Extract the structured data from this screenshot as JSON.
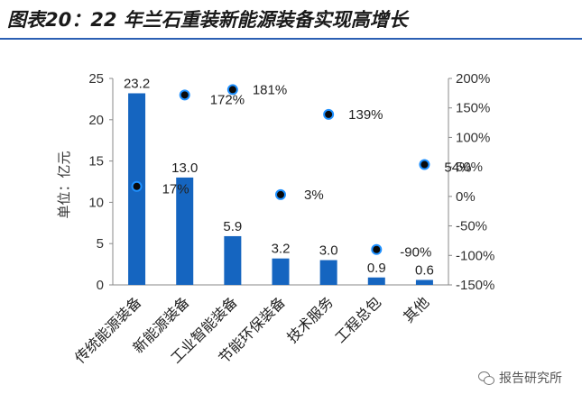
{
  "title": "图表20：22 年兰石重装新能源装备实现高增长",
  "watermark": {
    "text": "报告研究所",
    "icon": "wechat-icon"
  },
  "colors": {
    "bar": "#1565c0",
    "point": "#0a0a0a",
    "point_ring": "#1e90ff",
    "title_rule": "#2b5fb3"
  },
  "chart_data": {
    "type": "bar",
    "categories": [
      "传统能源装备",
      "新能源装备",
      "工业智能装备",
      "节能环保装备",
      "技术服务",
      "工程总包",
      "其他"
    ],
    "series": [
      {
        "axis": "left",
        "mark": "bar",
        "values": [
          23.2,
          13.0,
          5.9,
          3.2,
          3.0,
          0.9,
          0.6
        ],
        "value_labels": [
          "23.2",
          "13.0",
          "5.9",
          "3.2",
          "3.0",
          "0.9",
          "0.6"
        ]
      },
      {
        "axis": "right",
        "mark": "scatter",
        "values": [
          17,
          172,
          181,
          3,
          139,
          -90,
          54
        ],
        "value_labels": [
          "17%",
          "172%",
          "181%",
          "3%",
          "139%",
          "-90%",
          "54%"
        ]
      }
    ],
    "y_left": {
      "label": "单位：亿元",
      "min": 0,
      "max": 25,
      "ticks": [
        0,
        5,
        10,
        15,
        20,
        25
      ],
      "tick_labels": [
        "0",
        "5",
        "10",
        "15",
        "20",
        "25"
      ]
    },
    "y_right": {
      "label": "",
      "min": -150,
      "max": 200,
      "ticks": [
        -150,
        -100,
        -50,
        0,
        50,
        100,
        150,
        200
      ],
      "tick_labels": [
        "-150%",
        "-100%",
        "-50%",
        "0%",
        "50%",
        "100%",
        "150%",
        "200%"
      ]
    },
    "grid": false,
    "legend": "none"
  }
}
